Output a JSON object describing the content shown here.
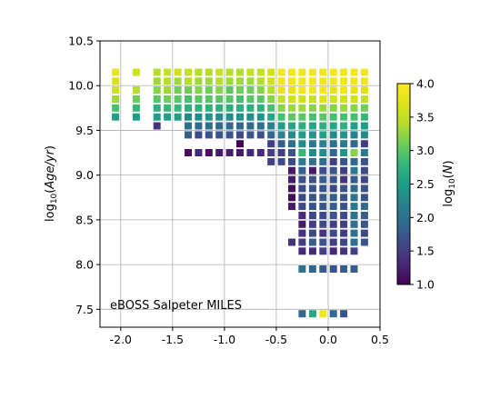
{
  "chart_data": {
    "type": "heatmap",
    "annotation": "eBOSS Salpeter MILES",
    "xlabel": "",
    "ylabel": "log10(Age/yr)",
    "ylabel_parts": {
      "base": "log",
      "sub": "10",
      "mid": "(",
      "italic": "Age/yr",
      "close": ")"
    },
    "xlim": [
      -2.2,
      0.5
    ],
    "ylim": [
      7.3,
      10.5
    ],
    "xticks": [
      "-2.0",
      "-1.5",
      "-1.0",
      "-0.5",
      "0.0",
      "0.5"
    ],
    "yticks": [
      "7.5",
      "8.0",
      "8.5",
      "9.0",
      "9.5",
      "10.0",
      "10.5"
    ],
    "xtick_values": [
      -2.0,
      -1.5,
      -1.0,
      -0.5,
      0.0,
      0.5
    ],
    "ytick_values": [
      7.5,
      8.0,
      8.5,
      9.0,
      9.5,
      10.0,
      10.5
    ],
    "grid": true,
    "colormap": "viridis",
    "colorbar": {
      "label": "log10(N)",
      "label_parts": {
        "base": "log",
        "sub": "10",
        "mid": "(",
        "italic": "N",
        "close": ")"
      },
      "range": [
        1.0,
        4.0
      ],
      "ticks": [
        "1.0",
        "1.5",
        "2.0",
        "2.5",
        "3.0",
        "3.5",
        "4.0"
      ],
      "tick_values": [
        1.0,
        1.5,
        2.0,
        2.5,
        3.0,
        3.5,
        4.0
      ]
    },
    "metallicity_bins": [
      -2.05,
      -1.85,
      -1.65,
      -1.55,
      -1.45,
      -1.35,
      -1.25,
      -1.15,
      -1.05,
      -0.95,
      -0.85,
      -0.75,
      -0.65,
      -0.55,
      -0.45,
      -0.35,
      -0.25,
      -0.15,
      -0.05,
      0.05,
      0.15,
      0.25,
      0.35
    ],
    "age_bins": [
      10.15,
      10.05,
      9.95,
      9.85,
      9.75,
      9.65,
      9.55,
      9.45,
      9.35,
      9.25,
      9.15,
      9.05,
      8.95,
      8.85,
      8.75,
      8.65,
      8.55,
      8.45,
      8.35,
      8.25,
      8.15,
      7.95,
      7.45
    ],
    "cells": [
      {
        "y": 10.15,
        "values": [
          3.8,
          3.6,
          3.4,
          3.5,
          3.6,
          3.5,
          3.4,
          3.4,
          3.5,
          3.4,
          3.4,
          3.5,
          3.5,
          3.6,
          3.9,
          3.9,
          3.9,
          3.9,
          3.9,
          3.9,
          3.9,
          3.9,
          3.9
        ]
      },
      {
        "y": 10.05,
        "values": [
          3.7,
          null,
          3.3,
          3.4,
          3.3,
          3.4,
          3.3,
          3.3,
          3.4,
          3.3,
          3.3,
          3.3,
          3.4,
          3.6,
          3.9,
          3.9,
          3.9,
          3.9,
          3.9,
          3.9,
          3.9,
          3.9,
          3.9
        ]
      },
      {
        "y": 9.95,
        "values": [
          3.6,
          3.4,
          3.2,
          3.3,
          3.1,
          3.1,
          3.2,
          3.1,
          3.2,
          3.0,
          3.1,
          3.1,
          3.2,
          3.4,
          3.8,
          3.8,
          3.9,
          3.9,
          3.9,
          3.8,
          3.9,
          3.8,
          3.7
        ]
      },
      {
        "y": 9.85,
        "values": [
          3.3,
          3.1,
          3.0,
          3.1,
          3.0,
          2.9,
          3.0,
          3.0,
          3.0,
          3.0,
          2.9,
          3.0,
          3.0,
          3.2,
          3.5,
          3.6,
          3.6,
          3.5,
          3.7,
          3.6,
          3.6,
          3.6,
          3.5
        ]
      },
      {
        "y": 9.75,
        "values": [
          2.9,
          2.8,
          2.7,
          2.8,
          2.8,
          2.7,
          2.7,
          2.7,
          2.7,
          2.7,
          2.7,
          2.7,
          2.7,
          2.9,
          3.2,
          3.3,
          3.3,
          3.2,
          3.3,
          3.2,
          3.3,
          3.2,
          3.1
        ]
      },
      {
        "y": 9.65,
        "values": [
          2.5,
          2.5,
          2.5,
          2.5,
          2.5,
          2.3,
          2.3,
          2.4,
          2.3,
          2.3,
          2.4,
          2.3,
          2.4,
          2.6,
          2.9,
          3.0,
          3.0,
          2.9,
          3.0,
          2.9,
          2.9,
          2.9,
          2.8
        ]
      },
      {
        "y": 9.55,
        "values": [
          null,
          null,
          1.4,
          null,
          null,
          2.0,
          1.9,
          2.0,
          1.9,
          1.9,
          1.9,
          1.9,
          2.0,
          2.2,
          2.5,
          2.6,
          2.7,
          2.6,
          2.7,
          2.6,
          2.7,
          2.5,
          2.5
        ]
      },
      {
        "y": 9.45,
        "values": [
          null,
          null,
          null,
          null,
          null,
          1.8,
          1.6,
          1.7,
          1.7,
          1.7,
          1.6,
          1.7,
          1.7,
          1.9,
          2.2,
          2.3,
          2.5,
          2.4,
          2.5,
          2.3,
          2.4,
          2.2,
          2.3
        ]
      },
      {
        "y": 9.35,
        "values": [
          null,
          null,
          null,
          null,
          null,
          null,
          null,
          null,
          null,
          null,
          1.0,
          null,
          null,
          1.5,
          1.8,
          2.0,
          2.3,
          2.1,
          2.2,
          2.0,
          2.1,
          1.9,
          1.5
        ]
      },
      {
        "y": 9.25,
        "values": [
          null,
          null,
          null,
          null,
          null,
          1.1,
          1.3,
          1.1,
          1.2,
          1.2,
          1.2,
          1.3,
          1.3,
          1.5,
          1.5,
          1.7,
          2.8,
          2.3,
          2.3,
          1.9,
          2.4,
          3.2,
          2.1
        ]
      },
      {
        "y": 9.15,
        "values": [
          null,
          null,
          null,
          null,
          null,
          null,
          null,
          null,
          null,
          null,
          null,
          null,
          null,
          1.5,
          1.6,
          1.6,
          2.1,
          2.0,
          1.9,
          1.5,
          1.7,
          1.9,
          1.7
        ]
      },
      {
        "y": 9.05,
        "values": [
          null,
          null,
          null,
          null,
          null,
          null,
          null,
          null,
          null,
          null,
          null,
          null,
          null,
          null,
          null,
          1.2,
          1.8,
          1.2,
          1.6,
          1.7,
          1.5,
          2.1,
          1.6
        ]
      },
      {
        "y": 8.95,
        "values": [
          null,
          null,
          null,
          null,
          null,
          null,
          null,
          null,
          null,
          null,
          null,
          null,
          null,
          null,
          null,
          1.2,
          1.7,
          1.7,
          1.8,
          1.7,
          1.4,
          1.8,
          1.6
        ]
      },
      {
        "y": 8.85,
        "values": [
          null,
          null,
          null,
          null,
          null,
          null,
          null,
          null,
          null,
          null,
          null,
          null,
          null,
          null,
          null,
          1.1,
          1.6,
          1.7,
          1.7,
          1.6,
          1.7,
          1.9,
          1.7
        ]
      },
      {
        "y": 8.75,
        "values": [
          null,
          null,
          null,
          null,
          null,
          null,
          null,
          null,
          null,
          null,
          null,
          null,
          null,
          null,
          null,
          1.1,
          1.6,
          1.7,
          1.8,
          1.8,
          1.7,
          2.0,
          1.7
        ]
      },
      {
        "y": 8.65,
        "values": [
          null,
          null,
          null,
          null,
          null,
          null,
          null,
          null,
          null,
          null,
          null,
          null,
          null,
          null,
          null,
          1.2,
          1.6,
          1.7,
          1.7,
          1.8,
          1.7,
          2.1,
          1.9
        ]
      },
      {
        "y": 8.55,
        "values": [
          null,
          null,
          null,
          null,
          null,
          null,
          null,
          null,
          null,
          null,
          null,
          null,
          null,
          null,
          null,
          null,
          1.3,
          1.6,
          1.6,
          1.7,
          1.6,
          2.0,
          1.8
        ]
      },
      {
        "y": 8.45,
        "values": [
          null,
          null,
          null,
          null,
          null,
          null,
          null,
          null,
          null,
          null,
          null,
          null,
          null,
          null,
          null,
          null,
          1.2,
          1.5,
          1.6,
          1.5,
          1.5,
          2.0,
          1.7
        ]
      },
      {
        "y": 8.35,
        "values": [
          null,
          null,
          null,
          null,
          null,
          null,
          null,
          null,
          null,
          null,
          null,
          null,
          null,
          null,
          null,
          null,
          1.4,
          1.6,
          1.4,
          1.6,
          1.5,
          2.0,
          1.6
        ]
      },
      {
        "y": 8.25,
        "values": [
          null,
          null,
          null,
          null,
          null,
          null,
          null,
          null,
          null,
          null,
          null,
          null,
          null,
          null,
          null,
          1.4,
          1.5,
          1.8,
          1.7,
          1.5,
          1.6,
          2.0,
          1.7
        ]
      },
      {
        "y": 8.15,
        "values": [
          null,
          null,
          null,
          null,
          null,
          null,
          null,
          null,
          null,
          null,
          null,
          null,
          null,
          null,
          null,
          null,
          1.3,
          1.3,
          1.5,
          1.3,
          1.4,
          1.5,
          null
        ]
      },
      {
        "y": 7.95,
        "values": [
          null,
          null,
          null,
          null,
          null,
          null,
          null,
          null,
          null,
          null,
          null,
          null,
          null,
          null,
          null,
          null,
          2.0,
          1.9,
          1.8,
          1.7,
          1.8,
          1.8,
          null
        ]
      },
      {
        "y": 7.45,
        "values": [
          null,
          null,
          null,
          null,
          null,
          null,
          null,
          null,
          null,
          null,
          null,
          null,
          null,
          null,
          null,
          null,
          1.9,
          2.6,
          3.9,
          1.9,
          1.7,
          null,
          null
        ]
      }
    ]
  }
}
